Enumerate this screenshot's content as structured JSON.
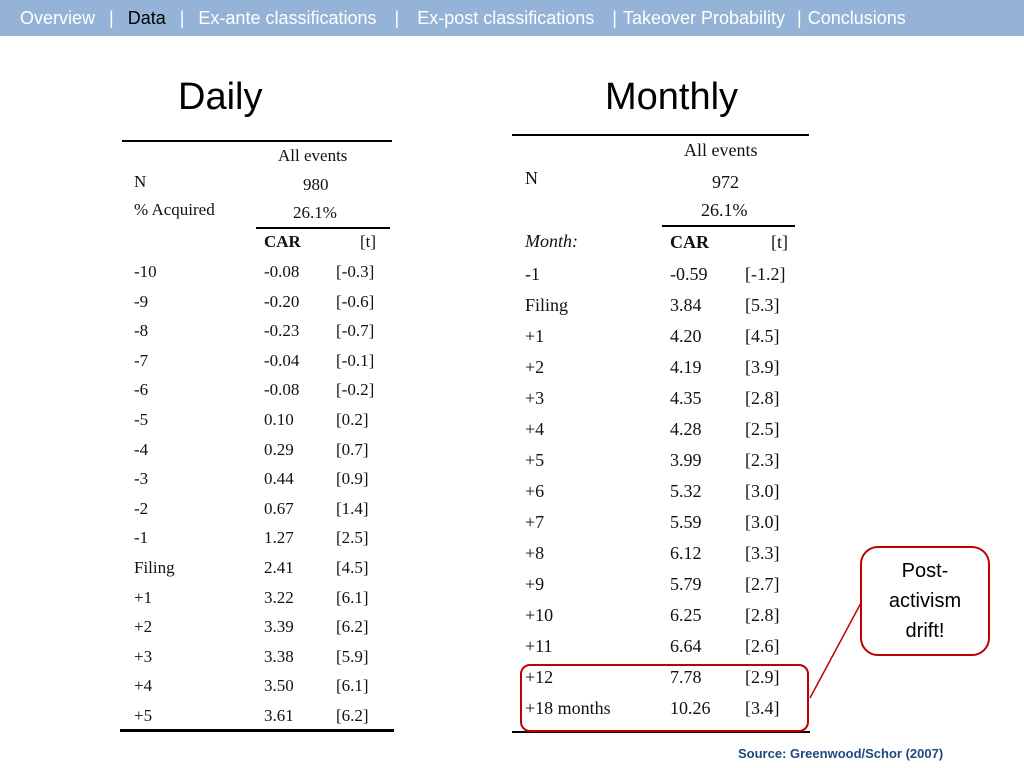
{
  "nav": {
    "items": [
      {
        "label": "Overview",
        "active": false
      },
      {
        "label": "Data",
        "active": true
      },
      {
        "label": "Ex-ante classifications",
        "active": false
      },
      {
        "label": "Ex-post classifications",
        "active": false
      },
      {
        "label": "Takeover Probability",
        "active": false
      },
      {
        "label": "Conclusions",
        "active": false
      }
    ],
    "separator": "|"
  },
  "daily": {
    "heading": "Daily",
    "header": {
      "all_events": "All events",
      "n_label": "N",
      "n_value": "980",
      "pct_label": "% Acquired",
      "pct_value": "26.1%",
      "car_label": "CAR",
      "t_label": "[t]"
    },
    "rows": [
      {
        "label": "-10",
        "car": "-0.08",
        "t": "[-0.3]"
      },
      {
        "label": "-9",
        "car": "-0.20",
        "t": "[-0.6]"
      },
      {
        "label": "-8",
        "car": "-0.23",
        "t": "[-0.7]"
      },
      {
        "label": "-7",
        "car": "-0.04",
        "t": "[-0.1]"
      },
      {
        "label": "-6",
        "car": "-0.08",
        "t": "[-0.2]"
      },
      {
        "label": "-5",
        "car": "0.10",
        "t": "[0.2]"
      },
      {
        "label": "-4",
        "car": "0.29",
        "t": "[0.7]"
      },
      {
        "label": "-3",
        "car": "0.44",
        "t": "[0.9]"
      },
      {
        "label": "-2",
        "car": "0.67",
        "t": "[1.4]"
      },
      {
        "label": "-1",
        "car": "1.27",
        "t": "[2.5]"
      },
      {
        "label": "Filing",
        "car": "2.41",
        "t": "[4.5]"
      },
      {
        "label": "+1",
        "car": "3.22",
        "t": "[6.1]"
      },
      {
        "label": "+2",
        "car": "3.39",
        "t": "[6.2]"
      },
      {
        "label": "+3",
        "car": "3.38",
        "t": "[5.9]"
      },
      {
        "label": "+4",
        "car": "3.50",
        "t": "[6.1]"
      },
      {
        "label": "+5",
        "car": "3.61",
        "t": "[6.2]"
      }
    ]
  },
  "monthly": {
    "heading": "Monthly",
    "header": {
      "all_events": "All events",
      "n_label": "N",
      "n_value": "972",
      "pct_value": "26.1%",
      "month_label": "Month:",
      "car_label": "CAR",
      "t_label": "[t]"
    },
    "rows": [
      {
        "label": "-1",
        "car": "-0.59",
        "t": "[-1.2]"
      },
      {
        "label": "Filing",
        "car": "3.84",
        "t": "[5.3]"
      },
      {
        "label": "+1",
        "car": "4.20",
        "t": "[4.5]"
      },
      {
        "label": "+2",
        "car": "4.19",
        "t": "[3.9]"
      },
      {
        "label": "+3",
        "car": "4.35",
        "t": "[2.8]"
      },
      {
        "label": "+4",
        "car": "4.28",
        "t": "[2.5]"
      },
      {
        "label": "+5",
        "car": "3.99",
        "t": "[2.3]"
      },
      {
        "label": "+6",
        "car": "5.32",
        "t": "[3.0]"
      },
      {
        "label": "+7",
        "car": "5.59",
        "t": "[3.0]"
      },
      {
        "label": "+8",
        "car": "6.12",
        "t": "[3.3]"
      },
      {
        "label": "+9",
        "car": "5.79",
        "t": "[2.7]"
      },
      {
        "label": "+10",
        "car": "6.25",
        "t": "[2.8]"
      },
      {
        "label": "+11",
        "car": "6.64",
        "t": "[2.6]"
      },
      {
        "label": "+12",
        "car": "7.78",
        "t": "[2.9]"
      },
      {
        "label": "+18 months",
        "car": "10.26",
        "t": "[3.4]"
      }
    ]
  },
  "callout": {
    "text": "Post-activism drift!"
  },
  "source": "Source: Greenwood/Schor (2007)",
  "colors": {
    "nav_bar": "#95b3d7",
    "highlight": "#c00000",
    "source": "#1f497d"
  }
}
